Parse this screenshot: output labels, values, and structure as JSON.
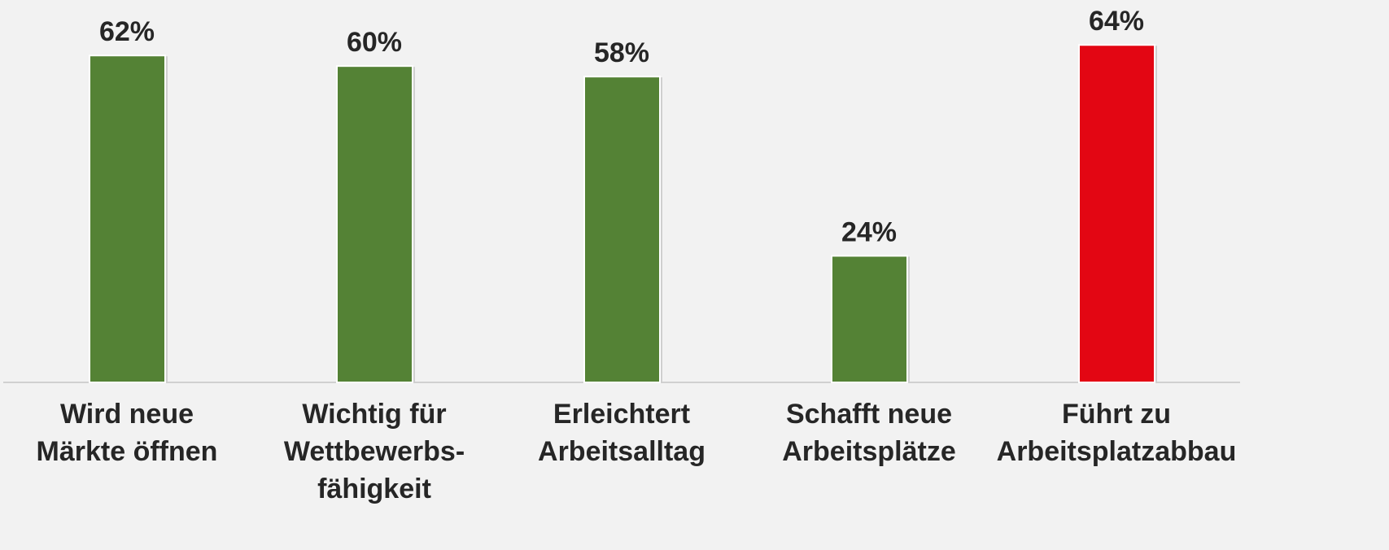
{
  "chart_data": {
    "type": "bar",
    "categories": [
      "Wird neue\nMärkte öffnen",
      "Wichtig für\nWettbewerbs-\nfähigkeit",
      "Erleichtert\nArbeitsalltag",
      "Schafft neue\nArbeitsplätze",
      "Führt zu\nArbeitsplatzabbau"
    ],
    "values": [
      62,
      60,
      58,
      24,
      64
    ],
    "value_labels": [
      "62%",
      "60%",
      "58%",
      "24%",
      "64%"
    ],
    "colors": [
      "#548235",
      "#548235",
      "#548235",
      "#548235",
      "#e30613"
    ],
    "ylim": [
      0,
      72
    ]
  }
}
